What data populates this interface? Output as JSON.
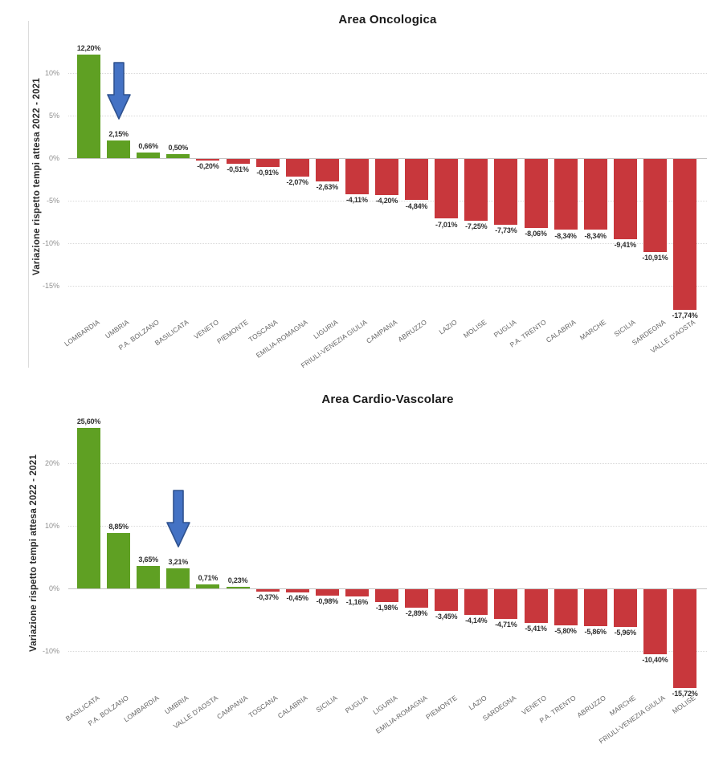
{
  "page": {
    "background": "#ffffff"
  },
  "colors": {
    "positive_bar": "#5fa023",
    "negative_bar": "#c8373c",
    "grid": "#d9d9d9",
    "axis_line": "#c4c4c4",
    "tick_label": "#8f8f8f",
    "value_label": "#303030",
    "category_label": "#666666",
    "title": "#1a1a1a",
    "arrow_fill": "#4472c4",
    "arrow_stroke": "#2f528f"
  },
  "chart_data": [
    {
      "type": "bar",
      "title": "Area Oncologica",
      "ylabel": "Variazione rispetto tempi attesa 2022 - 2021",
      "xlabel": "",
      "ylim": [
        -18.2,
        13.9
      ],
      "grid": "horizontal-dotted",
      "legend": "none",
      "yticks": [
        10,
        5,
        0,
        -5,
        -10,
        -15
      ],
      "ytick_labels": [
        "10%",
        "5%",
        "0%",
        "-5%",
        "-10%",
        "-15%"
      ],
      "categories": [
        "LOMBARDIA",
        "UMBRIA",
        "P.A. BOLZANO",
        "BASILICATA",
        "VENETO",
        "PIEMONTE",
        "TOSCANA",
        "EMILIA-ROMAGNA",
        "LIGURIA",
        "FRIULI-VENEZIA GIULIA",
        "CAMPANIA",
        "ABRUZZO",
        "LAZIO",
        "MOLISE",
        "PUGLIA",
        "P.A. TRENTO",
        "CALABRIA",
        "MARCHE",
        "SICILIA",
        "SARDEGNA",
        "VALLE D'AOSTA"
      ],
      "values": [
        12.2,
        2.15,
        0.66,
        0.5,
        -0.2,
        -0.51,
        -0.91,
        -2.07,
        -2.63,
        -4.11,
        -4.2,
        -4.84,
        -7.01,
        -7.25,
        -7.73,
        -8.06,
        -8.34,
        -8.34,
        -9.41,
        -10.91,
        -17.74
      ],
      "value_labels": [
        "12,20%",
        "2,15%",
        "0,66%",
        "0,50%",
        "-0,20%",
        "-0,51%",
        "-0,91%",
        "-2,07%",
        "-2,63%",
        "-4,11%",
        "-4,20%",
        "-4,84%",
        "-7,01%",
        "-7,25%",
        "-7,73%",
        "-8,06%",
        "-8,34%",
        "-8,34%",
        "-9,41%",
        "-10,91%",
        "-17,74%"
      ],
      "annotation": {
        "shape": "block-arrow-down",
        "target_category": "UMBRIA"
      }
    },
    {
      "type": "bar",
      "title": "Area Cardio-Vascolare",
      "ylabel": "Variazione rispetto tempi attesa 2022 - 2021",
      "xlabel": "",
      "ylim": [
        -16.0,
        27.3
      ],
      "grid": "horizontal-dotted",
      "legend": "none",
      "yticks": [
        20,
        10,
        0,
        -10
      ],
      "ytick_labels": [
        "20%",
        "10%",
        "0%",
        "-10%"
      ],
      "categories": [
        "BASILICATA",
        "P.A. BOLZANO",
        "LOMBARDIA",
        "UMBRIA",
        "VALLE D'AOSTA",
        "CAMPANIA",
        "TOSCANA",
        "CALABRIA",
        "SICILIA",
        "PUGLIA",
        "LIGURIA",
        "EMILIA-ROMAGNA",
        "PIEMONTE",
        "LAZIO",
        "SARDEGNA",
        "VENETO",
        "P.A. TRENTO",
        "ABRUZZO",
        "MARCHE",
        "FRIULI-VENEZIA GIULIA",
        "MOLISE"
      ],
      "values": [
        25.6,
        8.85,
        3.65,
        3.21,
        0.71,
        0.23,
        -0.37,
        -0.45,
        -0.98,
        -1.16,
        -1.98,
        -2.89,
        -3.45,
        -4.14,
        -4.71,
        -5.41,
        -5.8,
        -5.86,
        -5.96,
        -10.4,
        -15.72
      ],
      "value_labels": [
        "25,60%",
        "8,85%",
        "3,65%",
        "3,21%",
        "0,71%",
        "0,23%",
        "-0,37%",
        "-0,45%",
        "-0,98%",
        "-1,16%",
        "-1,98%",
        "-2,89%",
        "-3,45%",
        "-4,14%",
        "-4,71%",
        "-5,41%",
        "-5,80%",
        "-5,86%",
        "-5,96%",
        "-10,40%",
        "-15,72%"
      ],
      "annotation": {
        "shape": "block-arrow-down",
        "target_category": "UMBRIA"
      }
    }
  ]
}
